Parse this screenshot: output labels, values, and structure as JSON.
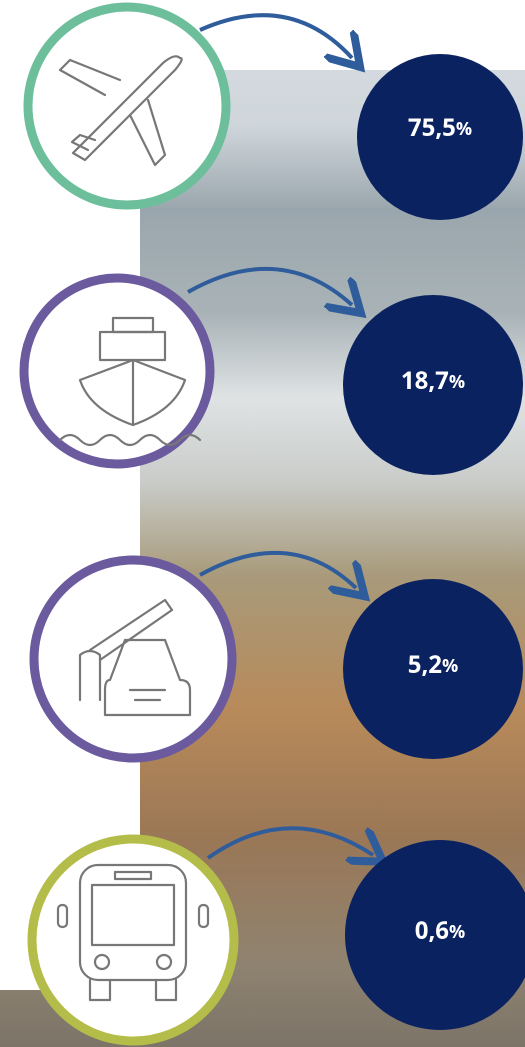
{
  "items": [
    {
      "value": "75,5",
      "unit": "%"
    },
    {
      "value": "18,7",
      "unit": "%"
    },
    {
      "value": "5,2",
      "unit": "%"
    },
    {
      "value": "0,6",
      "unit": "%"
    }
  ]
}
